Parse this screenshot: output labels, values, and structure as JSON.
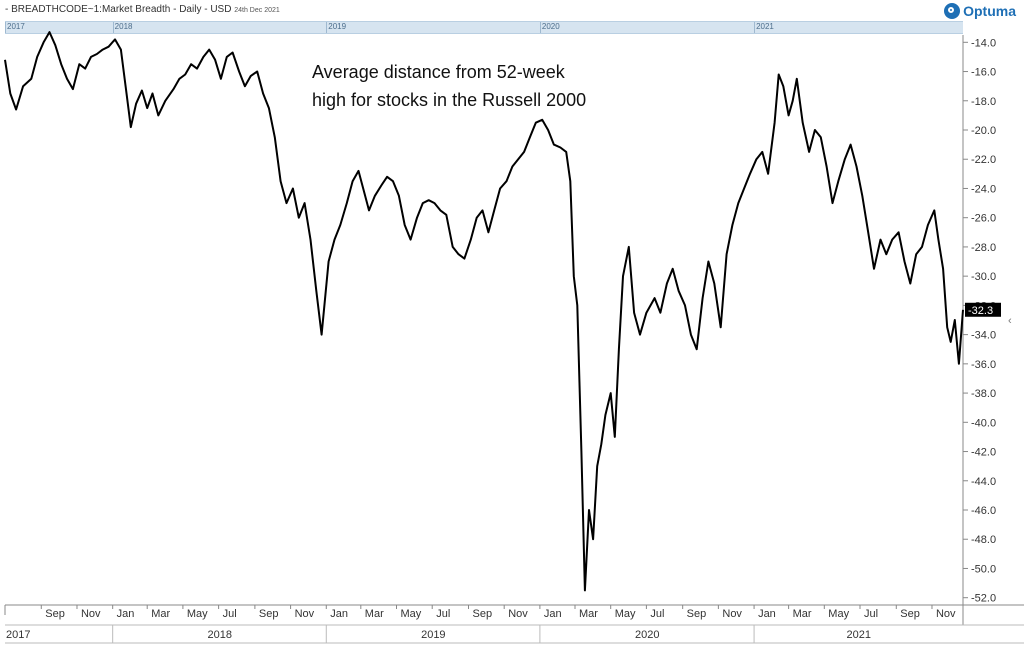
{
  "header": {
    "title": "- BREADTHCODE~1:Market Breadth - Daily - USD",
    "date": "24th Dec 2021"
  },
  "logo": {
    "text": "Optuma",
    "icon": "optuma-logo-icon",
    "color": "#1e6fb5"
  },
  "navigator": {
    "labels": [
      "2017",
      "2018",
      "2019",
      "2020",
      "2021"
    ]
  },
  "annotation": {
    "line1": "Average distance from 52-week",
    "line2": "high for stocks in the Russell 2000"
  },
  "collapse_icon": "chevron-left-icon",
  "chart_data": {
    "type": "line",
    "title": "",
    "xlabel": "",
    "ylabel": "",
    "ylim": [
      -52.5,
      -13.5
    ],
    "grid": false,
    "y_axis_side": "right",
    "y_ticks": [
      "-14.0",
      "-16.0",
      "-18.0",
      "-20.0",
      "-22.0",
      "-24.0",
      "-26.0",
      "-28.0",
      "-30.0",
      "-32.0",
      "-34.0",
      "-36.0",
      "-38.0",
      "-40.0",
      "-42.0",
      "-44.0",
      "-46.0",
      "-48.0",
      "-50.0",
      "-52.0"
    ],
    "x_month_labels": [
      "Sep",
      "Nov",
      "Jan",
      "Mar",
      "May",
      "Jul",
      "Sep",
      "Nov",
      "Jan",
      "Mar",
      "May",
      "Jul",
      "Sep",
      "Nov",
      "Jan",
      "Mar",
      "May",
      "Jul",
      "Sep",
      "Nov",
      "Jan",
      "Mar",
      "May",
      "Jul",
      "Sep",
      "Nov"
    ],
    "x_year_labels": [
      "2017",
      "2018",
      "2019",
      "2020",
      "2021"
    ],
    "last_value_label": "-32.3",
    "line_color": "#000000",
    "series": [
      {
        "values": [
          [
            "2017-07-01",
            -15.2
          ],
          [
            "2017-07-10",
            -17.5
          ],
          [
            "2017-07-20",
            -18.6
          ],
          [
            "2017-08-01",
            -17.0
          ],
          [
            "2017-08-15",
            -16.5
          ],
          [
            "2017-08-25",
            -15.0
          ],
          [
            "2017-09-05",
            -14.0
          ],
          [
            "2017-09-15",
            -13.3
          ],
          [
            "2017-09-25",
            -14.2
          ],
          [
            "2017-10-05",
            -15.5
          ],
          [
            "2017-10-15",
            -16.5
          ],
          [
            "2017-10-25",
            -17.2
          ],
          [
            "2017-11-05",
            -15.5
          ],
          [
            "2017-11-15",
            -15.8
          ],
          [
            "2017-11-25",
            -15.0
          ],
          [
            "2017-12-05",
            -14.8
          ],
          [
            "2017-12-15",
            -14.5
          ],
          [
            "2017-12-25",
            -14.3
          ],
          [
            "2018-01-05",
            -13.8
          ],
          [
            "2018-01-15",
            -14.5
          ],
          [
            "2018-01-23",
            -17.0
          ],
          [
            "2018-02-01",
            -19.8
          ],
          [
            "2018-02-10",
            -18.2
          ],
          [
            "2018-02-20",
            -17.3
          ],
          [
            "2018-03-01",
            -18.5
          ],
          [
            "2018-03-10",
            -17.5
          ],
          [
            "2018-03-20",
            -19.0
          ],
          [
            "2018-04-01",
            -18.0
          ],
          [
            "2018-04-15",
            -17.2
          ],
          [
            "2018-04-25",
            -16.5
          ],
          [
            "2018-05-05",
            -16.2
          ],
          [
            "2018-05-15",
            -15.5
          ],
          [
            "2018-05-25",
            -15.8
          ],
          [
            "2018-06-05",
            -15.0
          ],
          [
            "2018-06-15",
            -14.5
          ],
          [
            "2018-06-25",
            -15.2
          ],
          [
            "2018-07-05",
            -16.5
          ],
          [
            "2018-07-15",
            -15.0
          ],
          [
            "2018-07-25",
            -14.7
          ],
          [
            "2018-08-05",
            -16.0
          ],
          [
            "2018-08-15",
            -17.0
          ],
          [
            "2018-08-25",
            -16.3
          ],
          [
            "2018-09-05",
            -16.0
          ],
          [
            "2018-09-15",
            -17.5
          ],
          [
            "2018-09-25",
            -18.5
          ],
          [
            "2018-10-05",
            -20.5
          ],
          [
            "2018-10-15",
            -23.5
          ],
          [
            "2018-10-25",
            -25.0
          ],
          [
            "2018-11-05",
            -24.0
          ],
          [
            "2018-11-15",
            -26.0
          ],
          [
            "2018-11-25",
            -25.0
          ],
          [
            "2018-12-05",
            -27.5
          ],
          [
            "2018-12-15",
            -31.0
          ],
          [
            "2018-12-24",
            -34.0
          ],
          [
            "2019-01-05",
            -29.0
          ],
          [
            "2019-01-15",
            -27.5
          ],
          [
            "2019-01-25",
            -26.5
          ],
          [
            "2019-02-05",
            -25.0
          ],
          [
            "2019-02-15",
            -23.5
          ],
          [
            "2019-02-25",
            -22.8
          ],
          [
            "2019-03-05",
            -24.0
          ],
          [
            "2019-03-15",
            -25.5
          ],
          [
            "2019-03-25",
            -24.5
          ],
          [
            "2019-04-05",
            -23.8
          ],
          [
            "2019-04-15",
            -23.2
          ],
          [
            "2019-04-25",
            -23.5
          ],
          [
            "2019-05-05",
            -24.5
          ],
          [
            "2019-05-15",
            -26.5
          ],
          [
            "2019-05-25",
            -27.5
          ],
          [
            "2019-06-05",
            -26.0
          ],
          [
            "2019-06-15",
            -25.0
          ],
          [
            "2019-06-25",
            -24.8
          ],
          [
            "2019-07-05",
            -25.0
          ],
          [
            "2019-07-15",
            -25.5
          ],
          [
            "2019-07-25",
            -25.8
          ],
          [
            "2019-08-05",
            -28.0
          ],
          [
            "2019-08-15",
            -28.5
          ],
          [
            "2019-08-25",
            -28.8
          ],
          [
            "2019-09-05",
            -27.5
          ],
          [
            "2019-09-15",
            -26.0
          ],
          [
            "2019-09-25",
            -25.5
          ],
          [
            "2019-10-05",
            -27.0
          ],
          [
            "2019-10-15",
            -25.5
          ],
          [
            "2019-10-25",
            -24.0
          ],
          [
            "2019-11-05",
            -23.5
          ],
          [
            "2019-11-15",
            -22.5
          ],
          [
            "2019-11-25",
            -22.0
          ],
          [
            "2019-12-05",
            -21.5
          ],
          [
            "2019-12-15",
            -20.5
          ],
          [
            "2019-12-25",
            -19.5
          ],
          [
            "2020-01-05",
            -19.3
          ],
          [
            "2020-01-15",
            -20.0
          ],
          [
            "2020-01-25",
            -21.0
          ],
          [
            "2020-02-05",
            -21.2
          ],
          [
            "2020-02-15",
            -21.5
          ],
          [
            "2020-02-22",
            -23.5
          ],
          [
            "2020-02-28",
            -30.0
          ],
          [
            "2020-03-05",
            -32.0
          ],
          [
            "2020-03-12",
            -42.0
          ],
          [
            "2020-03-18",
            -51.5
          ],
          [
            "2020-03-25",
            -46.0
          ],
          [
            "2020-04-01",
            -48.0
          ],
          [
            "2020-04-08",
            -43.0
          ],
          [
            "2020-04-15",
            -41.5
          ],
          [
            "2020-04-22",
            -39.5
          ],
          [
            "2020-05-01",
            -38.0
          ],
          [
            "2020-05-08",
            -41.0
          ],
          [
            "2020-05-15",
            -35.0
          ],
          [
            "2020-05-22",
            -30.0
          ],
          [
            "2020-06-01",
            -28.0
          ],
          [
            "2020-06-10",
            -32.5
          ],
          [
            "2020-06-20",
            -34.0
          ],
          [
            "2020-07-01",
            -32.5
          ],
          [
            "2020-07-15",
            -31.5
          ],
          [
            "2020-07-25",
            -32.5
          ],
          [
            "2020-08-05",
            -30.5
          ],
          [
            "2020-08-15",
            -29.5
          ],
          [
            "2020-08-25",
            -31.0
          ],
          [
            "2020-09-05",
            -32.0
          ],
          [
            "2020-09-15",
            -34.0
          ],
          [
            "2020-09-25",
            -35.0
          ],
          [
            "2020-10-05",
            -31.5
          ],
          [
            "2020-10-15",
            -29.0
          ],
          [
            "2020-10-25",
            -30.5
          ],
          [
            "2020-11-05",
            -33.5
          ],
          [
            "2020-11-15",
            -28.5
          ],
          [
            "2020-11-25",
            -26.5
          ],
          [
            "2020-12-05",
            -25.0
          ],
          [
            "2020-12-15",
            -24.0
          ],
          [
            "2020-12-25",
            -23.0
          ],
          [
            "2021-01-05",
            -22.0
          ],
          [
            "2021-01-15",
            -21.5
          ],
          [
            "2021-01-25",
            -23.0
          ],
          [
            "2021-02-05",
            -19.5
          ],
          [
            "2021-02-12",
            -16.2
          ],
          [
            "2021-02-20",
            -17.0
          ],
          [
            "2021-03-01",
            -19.0
          ],
          [
            "2021-03-08",
            -18.0
          ],
          [
            "2021-03-15",
            -16.5
          ],
          [
            "2021-03-25",
            -19.5
          ],
          [
            "2021-04-05",
            -21.5
          ],
          [
            "2021-04-15",
            -20.0
          ],
          [
            "2021-04-25",
            -20.5
          ],
          [
            "2021-05-05",
            -22.5
          ],
          [
            "2021-05-15",
            -25.0
          ],
          [
            "2021-05-25",
            -23.5
          ],
          [
            "2021-06-05",
            -22.0
          ],
          [
            "2021-06-15",
            -21.0
          ],
          [
            "2021-06-25",
            -22.5
          ],
          [
            "2021-07-05",
            -24.5
          ],
          [
            "2021-07-15",
            -27.0
          ],
          [
            "2021-07-25",
            -29.5
          ],
          [
            "2021-08-05",
            -27.5
          ],
          [
            "2021-08-15",
            -28.5
          ],
          [
            "2021-08-25",
            -27.5
          ],
          [
            "2021-09-05",
            -27.0
          ],
          [
            "2021-09-15",
            -29.0
          ],
          [
            "2021-09-25",
            -30.5
          ],
          [
            "2021-10-05",
            -28.5
          ],
          [
            "2021-10-15",
            -28.0
          ],
          [
            "2021-10-25",
            -26.5
          ],
          [
            "2021-11-05",
            -25.5
          ],
          [
            "2021-11-12",
            -27.5
          ],
          [
            "2021-11-20",
            -29.5
          ],
          [
            "2021-11-27",
            -33.5
          ],
          [
            "2021-12-03",
            -34.5
          ],
          [
            "2021-12-10",
            -33.0
          ],
          [
            "2021-12-17",
            -36.0
          ],
          [
            "2021-12-24",
            -32.3
          ]
        ]
      }
    ]
  }
}
